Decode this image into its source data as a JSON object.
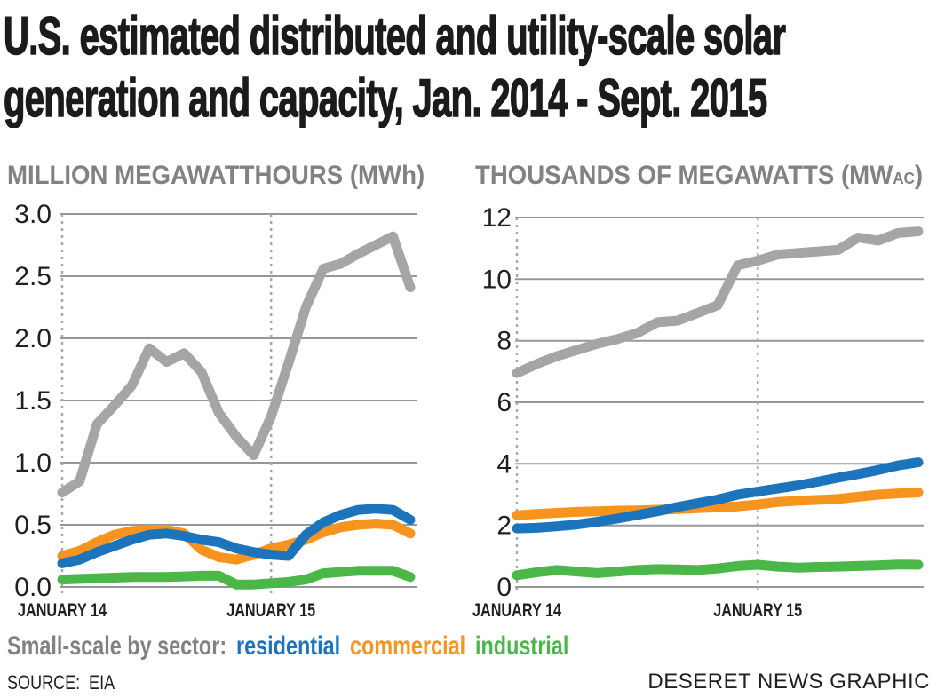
{
  "header": {
    "title_line1": "U.S. estimated distributed and utility-scale solar",
    "title_line2": "generation and capacity, Jan. 2014 - Sept. 2015"
  },
  "colors": {
    "residential": "#1c75bc",
    "commercial": "#f7941e",
    "industrial": "#4bb748",
    "utility": "#a5a5a7",
    "grid": "#95989a",
    "dashed": "#a8a8aa",
    "label_gray": "#808285",
    "text_black": "#231f20"
  },
  "chart_data": [
    {
      "type": "line",
      "header": {
        "pre": "MILLION MEGAWATTHOURS (MWh)",
        "sub": "",
        "post": ""
      },
      "categories": [
        "Jan 2014",
        "Feb 2014",
        "Mar 2014",
        "Apr 2014",
        "May 2014",
        "Jun 2014",
        "Jul 2014",
        "Aug 2014",
        "Sep 2014",
        "Oct 2014",
        "Nov 2014",
        "Dec 2014",
        "Jan 2015",
        "Feb 2015",
        "Mar 2015",
        "Apr 2015",
        "May 2015",
        "Jun 2015",
        "Jul 2015",
        "Aug 2015",
        "Sep 2015"
      ],
      "ylim": [
        0,
        3
      ],
      "ytick_values": [
        3,
        2.5,
        2,
        1.5,
        1,
        0.5,
        0
      ],
      "ytick_labels": [
        "3.0",
        "2.5",
        "2.0",
        "1.5",
        "1.0",
        "0.5",
        "0.0"
      ],
      "x_axis_marks": [
        {
          "label": "JANUARY 14",
          "month_index": 0
        },
        {
          "label": "JANUARY 15",
          "month_index": 12
        }
      ],
      "grid": true,
      "legend_position": "below",
      "series": [
        {
          "name": "utility-scale",
          "color": "utility",
          "values": [
            0.76,
            0.85,
            1.31,
            1.46,
            1.62,
            1.92,
            1.81,
            1.88,
            1.73,
            1.4,
            1.21,
            1.06,
            1.37,
            1.8,
            2.25,
            2.56,
            2.6,
            2.68,
            2.75,
            2.82,
            2.41
          ]
        },
        {
          "name": "commercial",
          "color": "commercial",
          "values": [
            0.25,
            0.29,
            0.36,
            0.42,
            0.45,
            0.46,
            0.46,
            0.43,
            0.3,
            0.24,
            0.22,
            0.26,
            0.31,
            0.34,
            0.38,
            0.44,
            0.48,
            0.5,
            0.51,
            0.5,
            0.43
          ]
        },
        {
          "name": "residential",
          "color": "residential",
          "values": [
            0.19,
            0.22,
            0.28,
            0.33,
            0.38,
            0.42,
            0.43,
            0.41,
            0.38,
            0.36,
            0.31,
            0.28,
            0.26,
            0.25,
            0.42,
            0.52,
            0.58,
            0.62,
            0.63,
            0.62,
            0.54
          ]
        },
        {
          "name": "industrial",
          "color": "industrial",
          "values": [
            0.06,
            0.065,
            0.07,
            0.075,
            0.08,
            0.08,
            0.08,
            0.085,
            0.09,
            0.09,
            0.02,
            0.02,
            0.03,
            0.04,
            0.06,
            0.11,
            0.12,
            0.13,
            0.13,
            0.13,
            0.08
          ]
        }
      ]
    },
    {
      "type": "line",
      "header": {
        "pre": "THOUSANDS OF MEGAWATTS (MW",
        "sub": "AC",
        "post": ")"
      },
      "categories": [
        "Jan 2014",
        "Feb 2014",
        "Mar 2014",
        "Apr 2014",
        "May 2014",
        "Jun 2014",
        "Jul 2014",
        "Aug 2014",
        "Sep 2014",
        "Oct 2014",
        "Nov 2014",
        "Dec 2014",
        "Jan 2015",
        "Feb 2015",
        "Mar 2015",
        "Apr 2015",
        "May 2015",
        "Jun 2015",
        "Jul 2015",
        "Aug 2015",
        "Sep 2015"
      ],
      "ylim": [
        0,
        12
      ],
      "ytick_values": [
        12,
        10,
        8,
        6,
        4,
        2,
        0
      ],
      "ytick_labels": [
        "12",
        "10",
        "8",
        "6",
        "4",
        "2",
        "0"
      ],
      "x_axis_marks": [
        {
          "label": "JANUARY 14",
          "month_index": 0
        },
        {
          "label": "JANUARY 15",
          "month_index": 12
        }
      ],
      "grid": true,
      "legend_position": "below",
      "series": [
        {
          "name": "utility-scale",
          "color": "utility",
          "values": [
            6.95,
            7.25,
            7.5,
            7.7,
            7.9,
            8.05,
            8.25,
            8.6,
            8.65,
            8.9,
            9.15,
            10.45,
            10.6,
            10.8,
            10.85,
            10.9,
            10.95,
            11.35,
            11.25,
            11.5,
            11.55
          ]
        },
        {
          "name": "commercial",
          "color": "commercial",
          "values": [
            2.33,
            2.37,
            2.41,
            2.44,
            2.46,
            2.48,
            2.49,
            2.51,
            2.53,
            2.56,
            2.59,
            2.62,
            2.68,
            2.76,
            2.8,
            2.83,
            2.86,
            2.93,
            3.0,
            3.04,
            3.07
          ]
        },
        {
          "name": "residential",
          "color": "residential",
          "values": [
            1.9,
            1.92,
            1.97,
            2.03,
            2.12,
            2.22,
            2.34,
            2.46,
            2.6,
            2.72,
            2.84,
            3.0,
            3.1,
            3.2,
            3.3,
            3.42,
            3.55,
            3.67,
            3.8,
            3.95,
            4.05
          ]
        },
        {
          "name": "industrial",
          "color": "industrial",
          "values": [
            0.38,
            0.48,
            0.55,
            0.5,
            0.45,
            0.5,
            0.55,
            0.58,
            0.57,
            0.55,
            0.6,
            0.68,
            0.72,
            0.66,
            0.63,
            0.65,
            0.66,
            0.68,
            0.7,
            0.73,
            0.72
          ]
        }
      ]
    }
  ],
  "legend": {
    "prefix": "Small-scale by sector:",
    "items": [
      {
        "label": "residential",
        "color": "residential"
      },
      {
        "label": "commercial",
        "color": "commercial"
      },
      {
        "label": "industrial",
        "color": "industrial"
      }
    ]
  },
  "footer": {
    "source_label": "SOURCE:",
    "source_value": "EIA",
    "credit": "DESERET NEWS GRAPHIC"
  }
}
